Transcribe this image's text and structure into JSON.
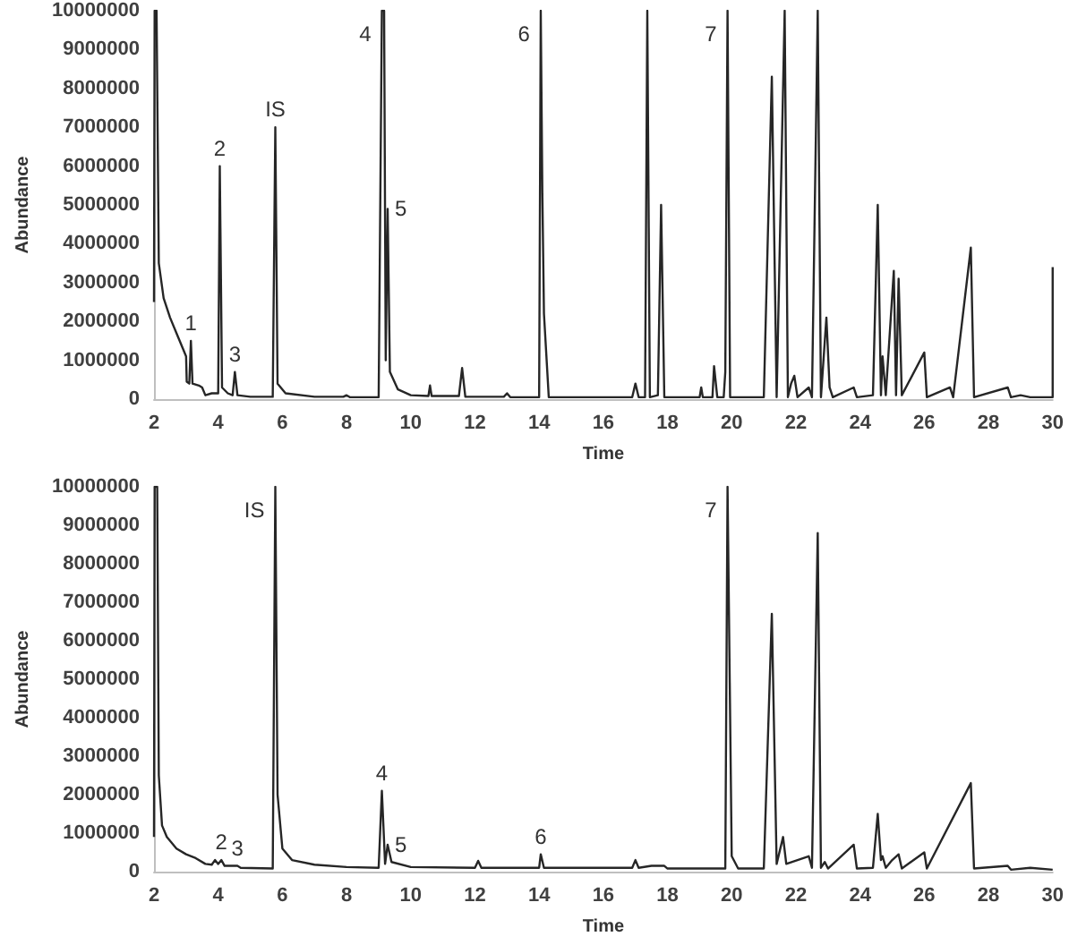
{
  "chart_data": [
    {
      "type": "line",
      "xlabel": "Time",
      "ylabel": "Abundance",
      "xlim": [
        2,
        30
      ],
      "xticks": [
        2,
        4,
        6,
        8,
        10,
        12,
        14,
        16,
        18,
        20,
        22,
        24,
        26,
        28,
        30
      ],
      "ylim": [
        0,
        10000000
      ],
      "yticks": [
        0,
        1000000,
        2000000,
        3000000,
        4000000,
        5000000,
        6000000,
        7000000,
        8000000,
        9000000,
        10000000
      ],
      "marker": "none",
      "annotations": [
        {
          "text": "1",
          "x": 3.15,
          "y": 1500000
        },
        {
          "text": "2",
          "x": 4.05,
          "y": 6000000
        },
        {
          "text": "3",
          "x": 4.52,
          "y": 700000
        },
        {
          "text": "IS",
          "x": 5.78,
          "y": 7000000
        },
        {
          "text": "4",
          "x": 9.1,
          "y": 10000000
        },
        {
          "text": "5",
          "x": 9.28,
          "y": 4900000
        },
        {
          "text": "6",
          "x": 14.05,
          "y": 10000000
        },
        {
          "text": "7",
          "x": 19.87,
          "y": 10000000
        }
      ],
      "series": [
        {
          "color": "#262626",
          "x": [
            2.0,
            2.02,
            2.08,
            2.15,
            2.3,
            2.5,
            2.7,
            2.9,
            3.0,
            3.02,
            3.1,
            3.15,
            3.2,
            3.4,
            3.5,
            3.6,
            3.8,
            4.0,
            4.05,
            4.12,
            4.3,
            4.45,
            4.52,
            4.6,
            5.0,
            5.7,
            5.78,
            5.85,
            6.1,
            7.0,
            7.9,
            8.0,
            8.1,
            9.0,
            9.1,
            9.17,
            9.22,
            9.28,
            9.35,
            9.6,
            10.0,
            10.55,
            10.6,
            10.65,
            11.5,
            11.6,
            11.7,
            12.9,
            13.0,
            13.1,
            14.0,
            14.05,
            14.1,
            14.15,
            14.3,
            16.9,
            17.0,
            17.1,
            17.3,
            17.37,
            17.45,
            17.7,
            17.8,
            17.9,
            19.0,
            19.05,
            19.1,
            19.4,
            19.45,
            19.55,
            19.75,
            19.8,
            19.87,
            19.95,
            21.0,
            21.25,
            21.4,
            21.65,
            21.75,
            21.85,
            21.95,
            22.05,
            22.4,
            22.5,
            22.68,
            22.78,
            22.95,
            23.05,
            23.15,
            23.8,
            23.9,
            24.4,
            24.55,
            24.65,
            24.7,
            24.8,
            25.05,
            25.12,
            25.2,
            25.3,
            26.0,
            26.08,
            26.8,
            26.9,
            27.45,
            27.55,
            28.6,
            28.7,
            29.0,
            29.3,
            30.0,
            30.0
          ],
          "values": [
            2500000,
            10000000,
            10000000,
            3500000,
            2600000,
            2100000,
            1700000,
            1300000,
            1100000,
            450000,
            400000,
            1500000,
            400000,
            350000,
            300000,
            100000,
            150000,
            150000,
            6000000,
            300000,
            150000,
            100000,
            700000,
            100000,
            60000,
            60000,
            7000000,
            400000,
            150000,
            60000,
            60000,
            100000,
            50000,
            50000,
            10000000,
            10000000,
            1000000,
            4900000,
            700000,
            250000,
            100000,
            80000,
            350000,
            80000,
            80000,
            800000,
            60000,
            60000,
            150000,
            50000,
            50000,
            10000000,
            5300000,
            2200000,
            50000,
            50000,
            400000,
            50000,
            50000,
            10000000,
            50000,
            100000,
            5000000,
            50000,
            50000,
            300000,
            50000,
            50000,
            850000,
            50000,
            50000,
            700000,
            10000000,
            50000,
            50000,
            8300000,
            50000,
            10000000,
            50000,
            400000,
            600000,
            50000,
            300000,
            50000,
            10000000,
            50000,
            2100000,
            300000,
            50000,
            300000,
            50000,
            100000,
            5000000,
            100000,
            1100000,
            100000,
            3300000,
            100000,
            3100000,
            100000,
            1200000,
            50000,
            300000,
            50000,
            3900000,
            50000,
            300000,
            50000,
            100000,
            50000,
            50000,
            3400000
          ]
        }
      ]
    },
    {
      "type": "line",
      "xlabel": "Time",
      "ylabel": "Abundance",
      "xlim": [
        2,
        30
      ],
      "xticks": [
        2,
        4,
        6,
        8,
        10,
        12,
        14,
        16,
        18,
        20,
        22,
        24,
        26,
        28,
        30
      ],
      "ylim": [
        0,
        10000000
      ],
      "yticks": [
        0,
        1000000,
        2000000,
        3000000,
        4000000,
        5000000,
        6000000,
        7000000,
        8000000,
        9000000,
        10000000
      ],
      "marker": "none",
      "annotations": [
        {
          "text": "IS",
          "x": 5.78,
          "y": 10000000
        },
        {
          "text": "2",
          "x": 4.1,
          "y": 300000
        },
        {
          "text": "3",
          "x": 4.6,
          "y": 150000
        },
        {
          "text": "4",
          "x": 9.1,
          "y": 2100000
        },
        {
          "text": "5",
          "x": 9.28,
          "y": 700000
        },
        {
          "text": "6",
          "x": 14.05,
          "y": 450000
        },
        {
          "text": "7",
          "x": 19.87,
          "y": 10000000
        }
      ],
      "series": [
        {
          "color": "#262626",
          "x": [
            2.0,
            2.02,
            2.1,
            2.15,
            2.25,
            2.4,
            2.7,
            3.0,
            3.3,
            3.6,
            3.8,
            3.9,
            4.0,
            4.1,
            4.2,
            4.6,
            4.7,
            5.7,
            5.78,
            5.85,
            6.0,
            6.3,
            7.0,
            8.0,
            9.0,
            9.1,
            9.2,
            9.28,
            9.4,
            10.0,
            12.0,
            12.1,
            12.2,
            14.0,
            14.05,
            14.15,
            16.9,
            17.0,
            17.1,
            17.5,
            17.9,
            18.0,
            19.8,
            19.87,
            20.0,
            20.2,
            21.0,
            21.25,
            21.4,
            21.6,
            21.7,
            22.4,
            22.5,
            22.68,
            22.78,
            22.9,
            23.0,
            23.8,
            23.9,
            24.4,
            24.55,
            24.65,
            24.7,
            24.8,
            25.0,
            25.2,
            25.3,
            26.0,
            26.08,
            27.45,
            27.55,
            28.6,
            28.7,
            29.3,
            30.0
          ],
          "values": [
            900000,
            10000000,
            10000000,
            2500000,
            1200000,
            900000,
            600000,
            450000,
            350000,
            200000,
            180000,
            300000,
            200000,
            300000,
            150000,
            150000,
            100000,
            80000,
            10000000,
            2000000,
            600000,
            300000,
            180000,
            120000,
            100000,
            2100000,
            200000,
            700000,
            250000,
            120000,
            100000,
            280000,
            100000,
            100000,
            450000,
            100000,
            100000,
            300000,
            100000,
            150000,
            150000,
            80000,
            80000,
            10000000,
            400000,
            80000,
            80000,
            6700000,
            200000,
            900000,
            200000,
            400000,
            100000,
            8800000,
            100000,
            250000,
            80000,
            700000,
            80000,
            100000,
            1500000,
            300000,
            400000,
            100000,
            300000,
            450000,
            80000,
            500000,
            80000,
            2300000,
            80000,
            150000,
            50000,
            100000,
            50000
          ]
        }
      ]
    }
  ]
}
